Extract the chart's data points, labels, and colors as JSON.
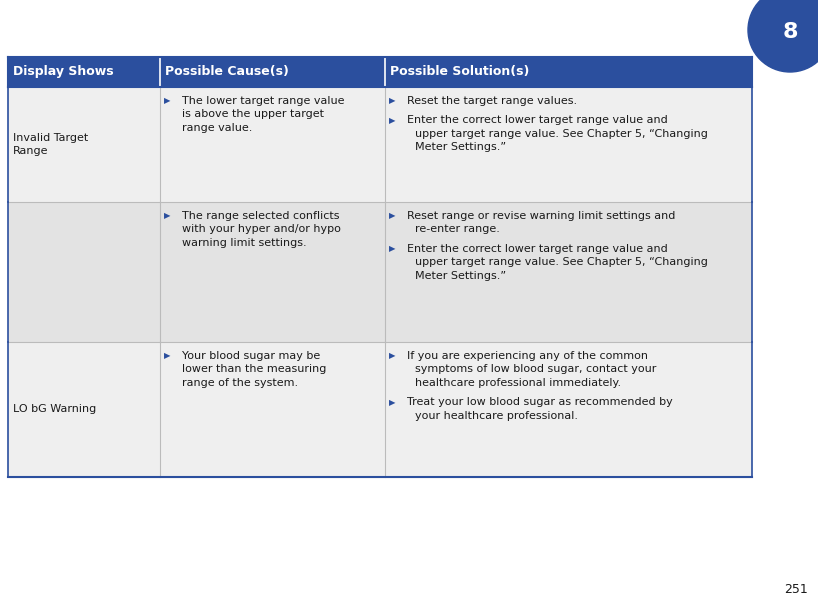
{
  "page_number": "8",
  "page_number_bottom": "251",
  "header_bg": "#2B4F9E",
  "header_text_color": "#FFFFFF",
  "row1_bg": "#EFEFEF",
  "row2_bg": "#E3E3E3",
  "row3_bg": "#EFEFEF",
  "border_color": "#2B4F9E",
  "divider_color": "#BBBBBB",
  "text_color": "#1a1a1a",
  "bullet_color": "#2B4F9E",
  "col_headers": [
    "Display Shows",
    "Possible Cause(s)",
    "Possible Solution(s)"
  ],
  "fig_width": 8.18,
  "fig_height": 6.08,
  "dpi": 100,
  "rows": [
    {
      "col0": "Invalid Target\nRange",
      "col1_bullets": [
        "The lower target range value\nis above the upper target\nrange value."
      ],
      "col2_bullets": [
        "Reset the target range values.",
        "Enter the correct lower target range value and\nupper target range value. See Chapter 5, “Changing\nMeter Settings.”"
      ]
    },
    {
      "col0": "",
      "col1_bullets": [
        "The range selected conflicts\nwith your hyper and/or hypo\nwarning limit settings."
      ],
      "col2_bullets": [
        "Reset range or revise warning limit settings and\nre-enter range.",
        "Enter the correct lower target range value and\nupper target range value. See Chapter 5, “Changing\nMeter Settings.”"
      ]
    },
    {
      "col0": "LO bG Warning",
      "col1_bullets": [
        "Your blood sugar may be\nlower than the measuring\nrange of the system."
      ],
      "col2_bullets": [
        "If you are experiencing any of the common\nsymptoms of low blood sugar, contact your\nhealthcare professional immediately.",
        "Treat your low blood sugar as recommended by\nyour healthcare professional."
      ]
    }
  ]
}
